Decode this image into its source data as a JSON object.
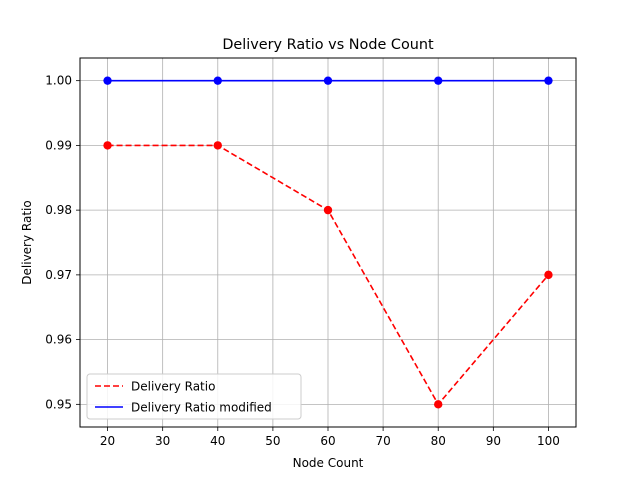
{
  "chart_data": {
    "type": "line",
    "title": "Delivery Ratio vs Node Count",
    "xlabel": "Node Count",
    "ylabel": "Delivery Ratio",
    "x": [
      20,
      40,
      60,
      80,
      100
    ],
    "xlim": [
      15,
      105
    ],
    "ylim": [
      0.9465,
      1.0035
    ],
    "xticks": [
      20,
      30,
      40,
      50,
      60,
      70,
      80,
      90,
      100
    ],
    "xtick_labels": [
      "20",
      "30",
      "40",
      "50",
      "60",
      "70",
      "80",
      "90",
      "100"
    ],
    "yticks": [
      0.95,
      0.96,
      0.97,
      0.98,
      0.99,
      1.0
    ],
    "ytick_labels": [
      "0.95",
      "0.96",
      "0.97",
      "0.98",
      "0.99",
      "1.00"
    ],
    "grid": true,
    "legend_position": "lower-left",
    "series": [
      {
        "name": "Delivery Ratio",
        "values": [
          0.99,
          0.99,
          0.98,
          0.95,
          0.97
        ],
        "color": "#ff0000",
        "style": "dashed",
        "markers": true
      },
      {
        "name": "Delivery Ratio modified",
        "values": [
          1.0,
          1.0,
          1.0,
          1.0,
          1.0
        ],
        "color": "#0000ff",
        "style": "solid",
        "markers": true
      }
    ]
  }
}
